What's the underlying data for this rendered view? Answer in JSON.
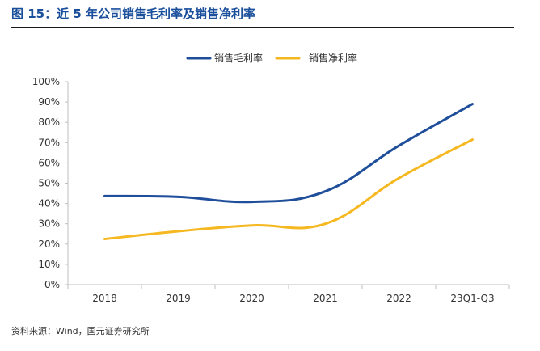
{
  "figure": {
    "title": "图 15：近 5 年公司销售毛利率及销售净利率",
    "source": "资料来源：Wind，国元证券研究所"
  },
  "chart_data": {
    "type": "line",
    "categories": [
      "2018",
      "2019",
      "2020",
      "2021",
      "2022",
      "23Q1-Q3"
    ],
    "series": [
      {
        "name": "销售毛利率",
        "values": [
          43.7,
          43.3,
          40.8,
          46.0,
          68.5,
          89.0
        ],
        "color": "#1f4e9b"
      },
      {
        "name": "销售净利率",
        "values": [
          22.5,
          26.3,
          29.2,
          30.0,
          52.5,
          71.5
        ],
        "color": "#f5b820"
      }
    ],
    "yticks": [
      "0%",
      "10%",
      "20%",
      "30%",
      "40%",
      "50%",
      "60%",
      "70%",
      "80%",
      "90%",
      "100%"
    ],
    "ylim": [
      0,
      100
    ],
    "legend_position": "top-center",
    "grid": false,
    "smooth": true
  }
}
